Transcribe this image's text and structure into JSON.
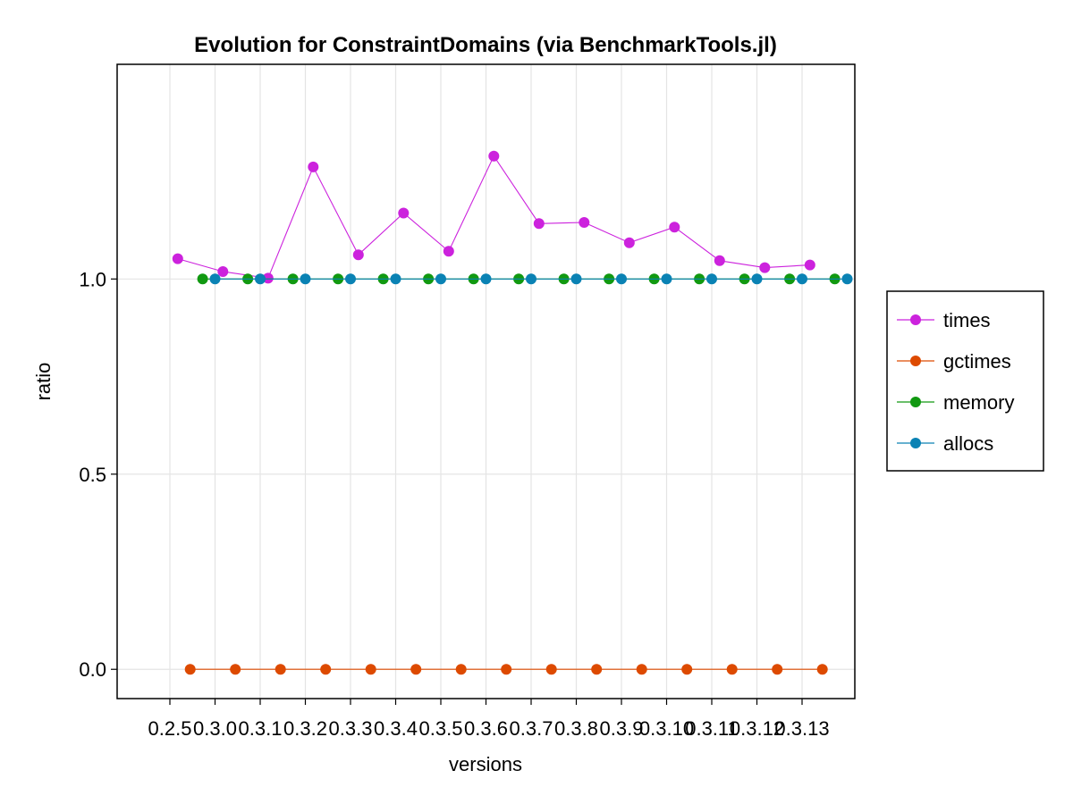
{
  "chart_data": {
    "type": "line",
    "title": "Evolution for ConstraintDomains (via BenchmarkTools.jl)",
    "xlabel": "versions",
    "ylabel": "ratio",
    "categories": [
      "0.2.5",
      "0.3.0",
      "0.3.1",
      "0.3.2",
      "0.3.3",
      "0.3.4",
      "0.3.5",
      "0.3.6",
      "0.3.7",
      "0.3.8",
      "0.3.9",
      "0.3.10",
      "0.3.11",
      "0.3.12",
      "0.3.13"
    ],
    "yticks": [
      0.0,
      0.5,
      1.0
    ],
    "ytick_labels": [
      "0.0",
      "0.5",
      "1.0"
    ],
    "ylim": [
      -0.075,
      1.55
    ],
    "grid": true,
    "legend_position": "right",
    "series": [
      {
        "name": "times",
        "color": "#cc22dd",
        "x": [
          0.175,
          1.175,
          2.175,
          3.175,
          4.175,
          5.175,
          6.175,
          7.175,
          8.175,
          9.175,
          10.175,
          11.175,
          12.175,
          13.175,
          14.175
        ],
        "values": [
          1.052,
          1.019,
          1.002,
          1.287,
          1.062,
          1.169,
          1.071,
          1.315,
          1.142,
          1.145,
          1.093,
          1.133,
          1.047,
          1.029,
          1.036
        ]
      },
      {
        "name": "gctimes",
        "color": "#dd4a00",
        "x": [
          0.45,
          1.45,
          2.45,
          3.45,
          4.45,
          5.45,
          6.45,
          7.45,
          8.45,
          9.45,
          10.45,
          11.45,
          12.45,
          13.45,
          14.45
        ],
        "values": [
          0,
          0,
          0,
          0,
          0,
          0,
          0,
          0,
          0,
          0,
          0,
          0,
          0,
          0,
          0
        ]
      },
      {
        "name": "memory",
        "color": "#119911",
        "x": [
          0.725,
          1.725,
          2.725,
          3.725,
          4.725,
          5.725,
          6.725,
          7.725,
          8.725,
          9.725,
          10.725,
          11.725,
          12.725,
          13.725,
          14.725
        ],
        "values": [
          1,
          1,
          1,
          1,
          1,
          1,
          1,
          1,
          1,
          1,
          1,
          1,
          1,
          1,
          1
        ]
      },
      {
        "name": "allocs",
        "color": "#0a82b4",
        "x": [
          1.0,
          2.0,
          3.0,
          4.0,
          5.0,
          6.0,
          7.0,
          8.0,
          9.0,
          10.0,
          11.0,
          12.0,
          13.0,
          14.0,
          15.0
        ],
        "values": [
          1,
          1,
          1,
          1,
          1,
          1,
          1,
          1,
          1,
          1,
          1,
          1,
          1,
          1,
          1
        ]
      }
    ]
  }
}
